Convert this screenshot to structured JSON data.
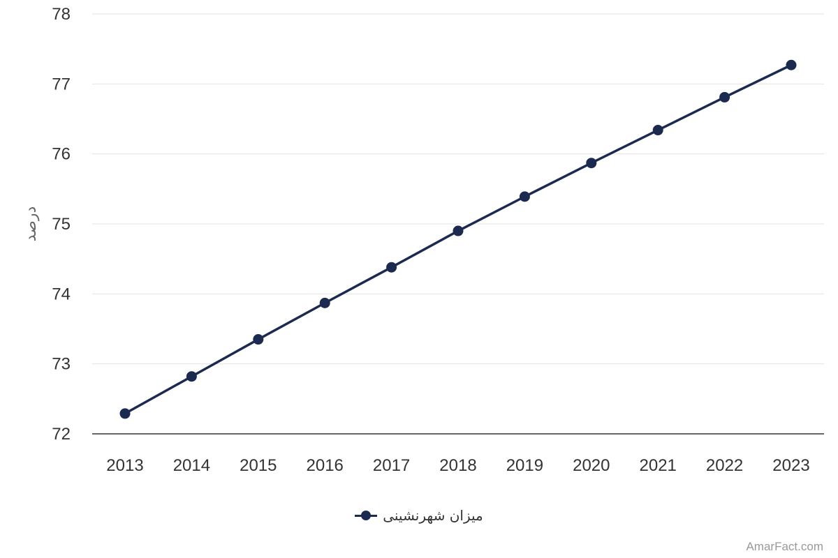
{
  "chart_data": {
    "type": "line",
    "x": [
      "2013",
      "2014",
      "2015",
      "2016",
      "2017",
      "2018",
      "2019",
      "2020",
      "2021",
      "2022",
      "2023"
    ],
    "series": [
      {
        "name": "میزان شهرنشینی",
        "values": [
          72.29,
          72.82,
          73.35,
          73.87,
          74.38,
          74.9,
          75.39,
          75.87,
          76.34,
          76.81,
          77.27
        ],
        "color": "#1b2a4e"
      }
    ],
    "ylabel": "درصد",
    "xlabel": "",
    "ylim": [
      72,
      78
    ],
    "yticks": [
      "72",
      "73",
      "74",
      "75",
      "76",
      "77",
      "78"
    ],
    "grid": true,
    "legend_position": "bottom-center"
  },
  "watermark": "AmarFact.com"
}
